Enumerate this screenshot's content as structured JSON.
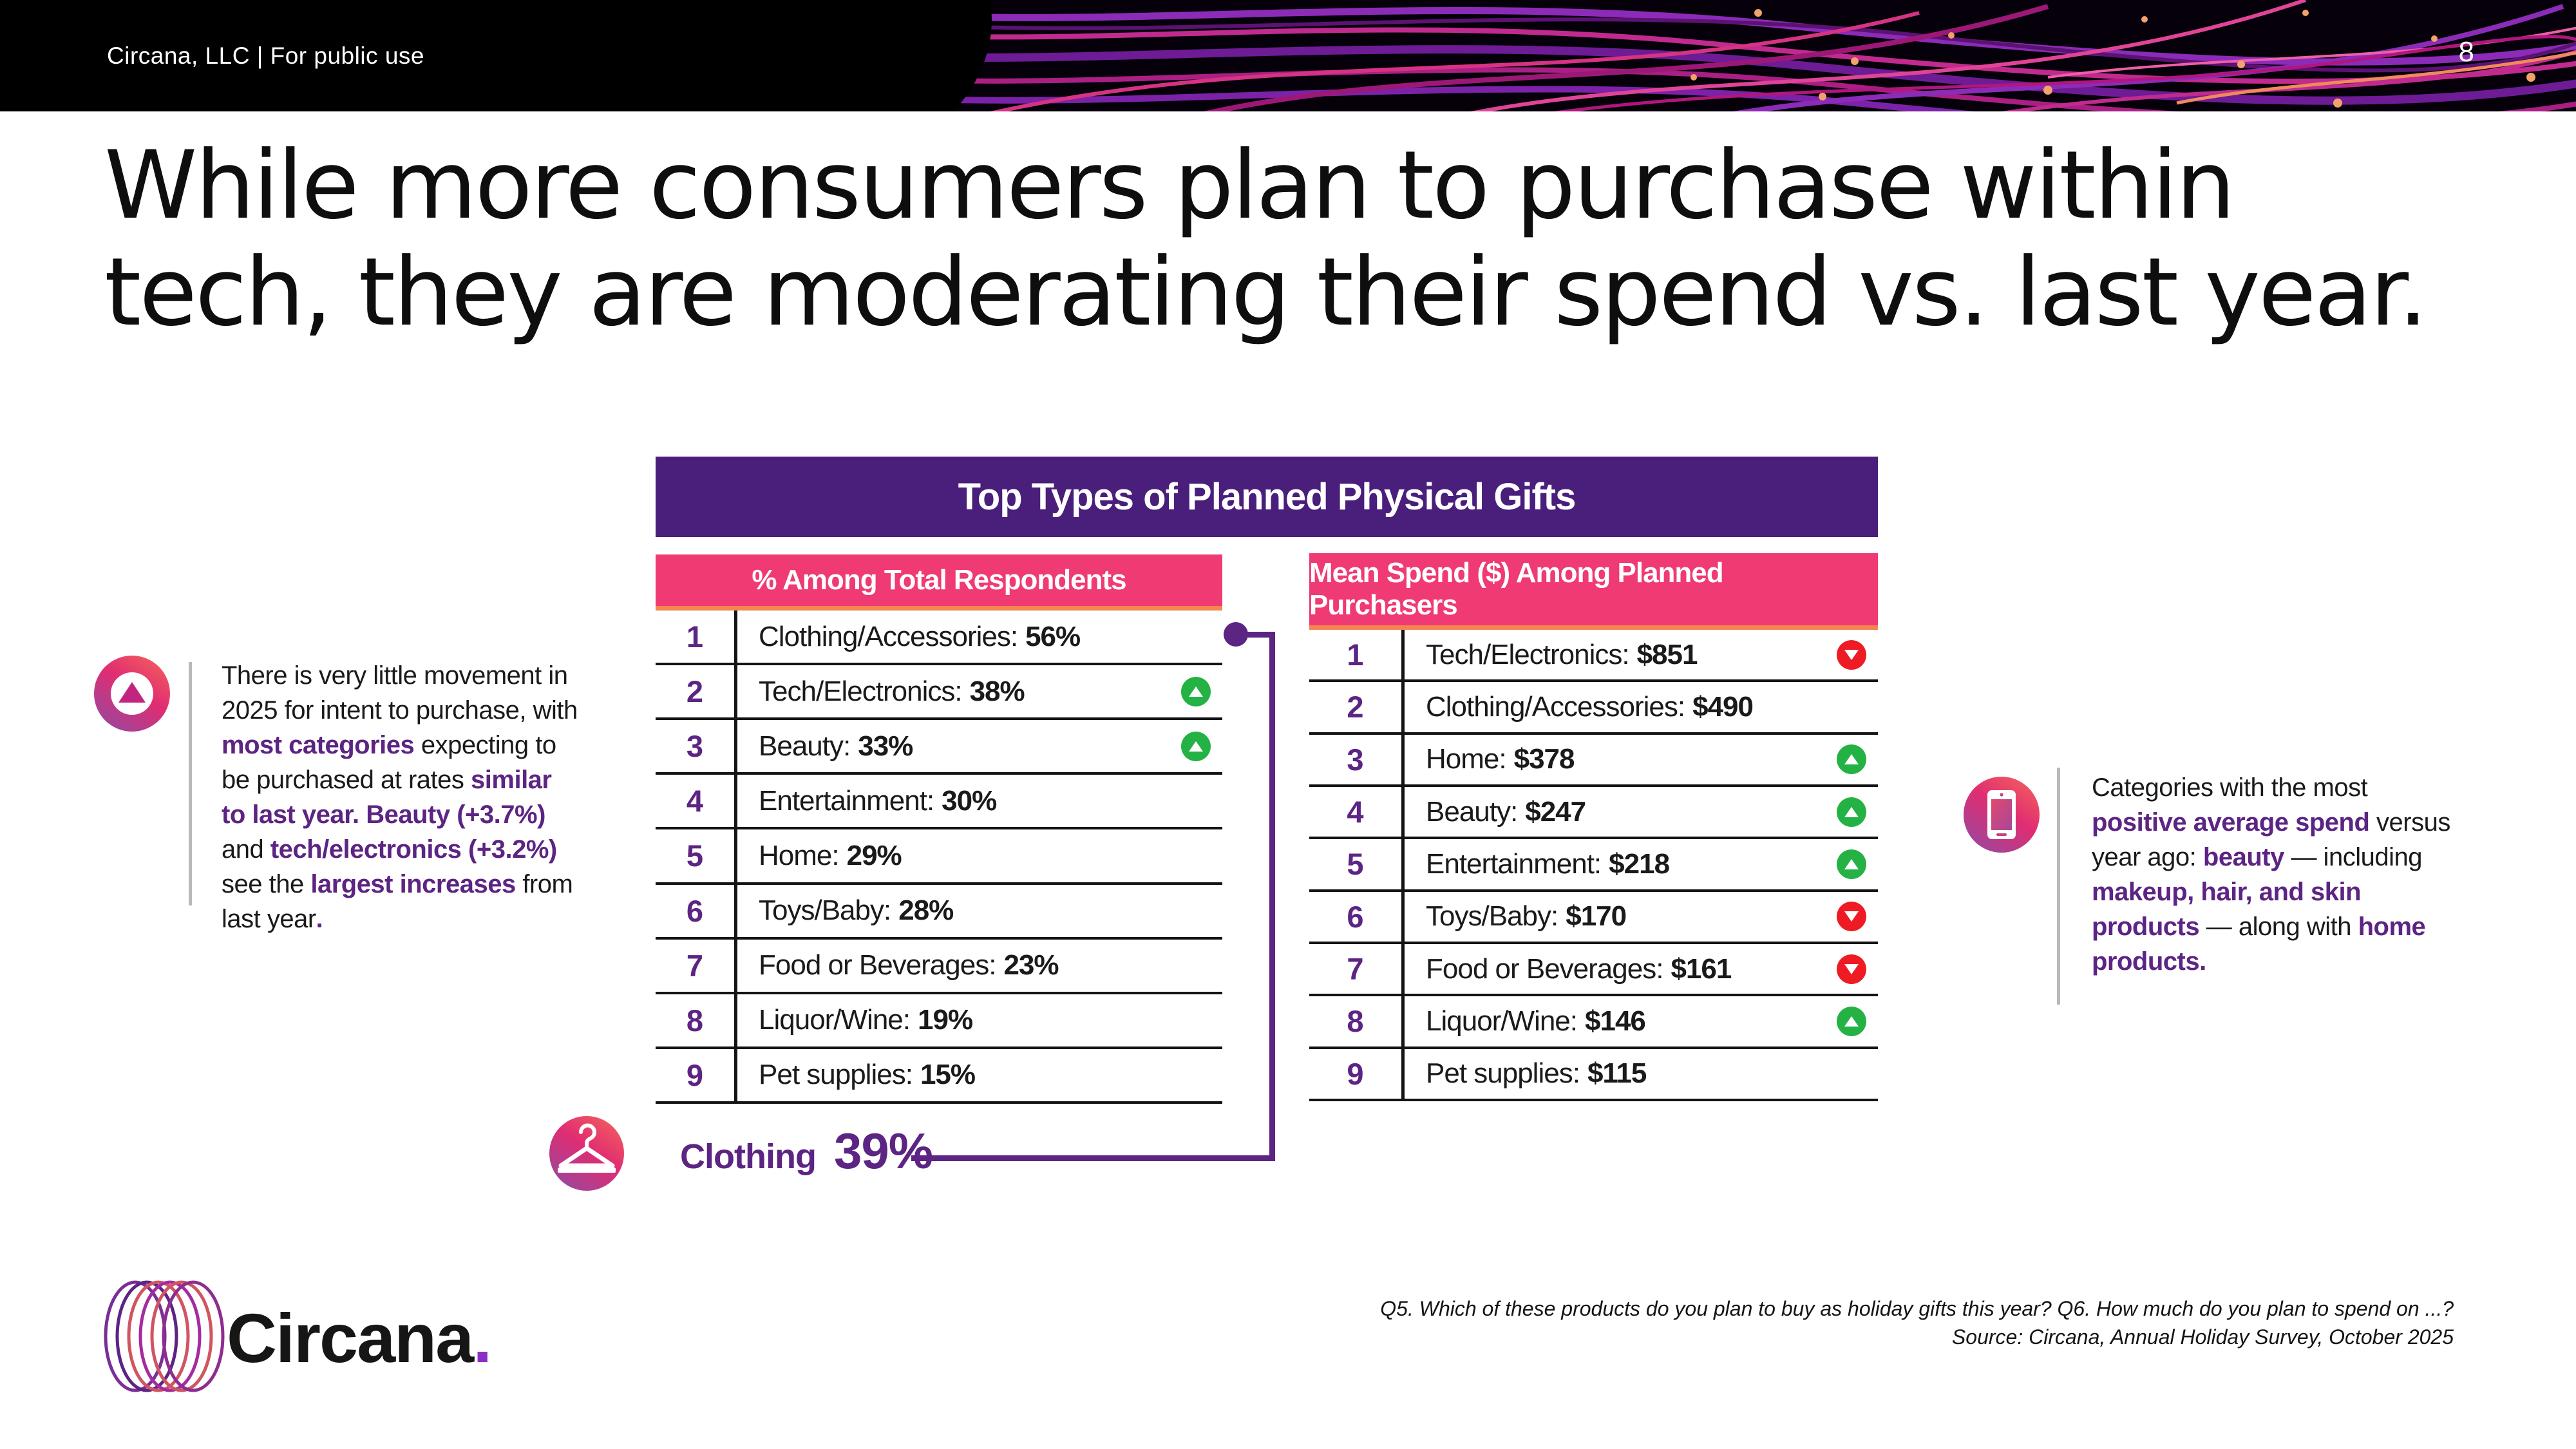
{
  "banner": {
    "left_text": "Circana, LLC |  For public use",
    "page_number": "8"
  },
  "title": {
    "line1": "While more consumers plan to purchase within",
    "line2": "tech, they are moderating their spend vs. last year."
  },
  "table": {
    "title": "Top Types of Planned Physical Gifts",
    "left": {
      "header": "% Among Total Respondents",
      "rows": [
        {
          "rank": "1",
          "label": "Clothing/Accessories:",
          "value": "56%",
          "trend": "none"
        },
        {
          "rank": "2",
          "label": "Tech/Electronics:",
          "value": "38%",
          "trend": "up"
        },
        {
          "rank": "3",
          "label": "Beauty:",
          "value": "33%",
          "trend": "up"
        },
        {
          "rank": "4",
          "label": "Entertainment:",
          "value": "30%",
          "trend": "none"
        },
        {
          "rank": "5",
          "label": "Home:",
          "value": "29%",
          "trend": "none"
        },
        {
          "rank": "6",
          "label": "Toys/Baby:",
          "value": "28%",
          "trend": "none"
        },
        {
          "rank": "7",
          "label": "Food or Beverages:",
          "value": "23%",
          "trend": "none"
        },
        {
          "rank": "8",
          "label": "Liquor/Wine:",
          "value": "19%",
          "trend": "none"
        },
        {
          "rank": "9",
          "label": "Pet supplies:",
          "value": "15%",
          "trend": "none"
        }
      ]
    },
    "right": {
      "header": "Mean Spend ($) Among Planned Purchasers",
      "rows": [
        {
          "rank": "1",
          "label": "Tech/Electronics:",
          "value": "$851",
          "trend": "down"
        },
        {
          "rank": "2",
          "label": "Clothing/Accessories:",
          "value": "$490",
          "trend": "none"
        },
        {
          "rank": "3",
          "label": "Home:",
          "value": "$378",
          "trend": "up"
        },
        {
          "rank": "4",
          "label": "Beauty:",
          "value": "$247",
          "trend": "up"
        },
        {
          "rank": "5",
          "label": "Entertainment:",
          "value": "$218",
          "trend": "up"
        },
        {
          "rank": "6",
          "label": "Toys/Baby:",
          "value": "$170",
          "trend": "down"
        },
        {
          "rank": "7",
          "label": "Food or Beverages:",
          "value": "$161",
          "trend": "down"
        },
        {
          "rank": "8",
          "label": "Liquor/Wine:",
          "value": "$146",
          "trend": "up"
        },
        {
          "rank": "9",
          "label": "Pet supplies:",
          "value": "$115",
          "trend": "none"
        }
      ]
    }
  },
  "left_note": {
    "segments": [
      {
        "t": "There is very little movement in 2025 for intent to purchase, with ",
        "em": false
      },
      {
        "t": "most categories",
        "em": true
      },
      {
        "t": " expecting to be purchased at rates ",
        "em": false
      },
      {
        "t": "similar to last year. Beauty (+3.7%)",
        "em": true
      },
      {
        "t": " and ",
        "em": false
      },
      {
        "t": "tech/electronics (+3.2%)",
        "em": true
      },
      {
        "t": " see the ",
        "em": false
      },
      {
        "t": "largest increases",
        "em": true
      },
      {
        "t": " from last year",
        "em": false
      },
      {
        "t": ".",
        "em": true
      }
    ]
  },
  "right_note": {
    "segments": [
      {
        "t": "Categories with the most ",
        "em": false
      },
      {
        "t": "positive average spend",
        "em": true
      },
      {
        "t": " versus year ago: ",
        "em": false
      },
      {
        "t": "beauty",
        "em": true
      },
      {
        "t": " — including ",
        "em": false
      },
      {
        "t": "makeup, hair, and skin products",
        "em": true
      },
      {
        "t": " — along with ",
        "em": false
      },
      {
        "t": "home products.",
        "em": true
      }
    ]
  },
  "callout": {
    "label": "Clothing",
    "value": "39%"
  },
  "footer": {
    "line1": "Q5. Which of these products do you plan to buy as holiday gifts this year? Q6. How much do you plan to spend on ...?",
    "line2": "Source: Circana, Annual Holiday Survey, October 2025"
  },
  "logo": {
    "text": "Circana",
    "dot": "."
  },
  "colors": {
    "header_purple": "#4A1E7B",
    "header_pink": "#EF3A74",
    "header_underline_orange": "#F5854F",
    "accent_purple": "#5C2483",
    "trend_up_green": "#25B244",
    "trend_down_red": "#EE1B24"
  },
  "chart_data": [
    {
      "type": "table",
      "title": "% Among Total Respondents",
      "columns": [
        "rank",
        "category",
        "percent",
        "trend_vs_last_year"
      ],
      "rows": [
        [
          1,
          "Clothing/Accessories",
          "56%",
          ""
        ],
        [
          2,
          "Tech/Electronics",
          "38%",
          "up"
        ],
        [
          3,
          "Beauty",
          "33%",
          "up"
        ],
        [
          4,
          "Entertainment",
          "30%",
          ""
        ],
        [
          5,
          "Home",
          "29%",
          ""
        ],
        [
          6,
          "Toys/Baby",
          "28%",
          ""
        ],
        [
          7,
          "Food or Beverages",
          "23%",
          ""
        ],
        [
          8,
          "Liquor/Wine",
          "19%",
          ""
        ],
        [
          9,
          "Pet supplies",
          "15%",
          ""
        ]
      ]
    },
    {
      "type": "table",
      "title": "Mean Spend ($) Among Planned Purchasers",
      "columns": [
        "rank",
        "category",
        "mean_spend",
        "trend_vs_last_year"
      ],
      "rows": [
        [
          1,
          "Tech/Electronics",
          "$851",
          "down"
        ],
        [
          2,
          "Clothing/Accessories",
          "$490",
          ""
        ],
        [
          3,
          "Home",
          "$378",
          "up"
        ],
        [
          4,
          "Beauty",
          "$247",
          "up"
        ],
        [
          5,
          "Entertainment",
          "$218",
          "up"
        ],
        [
          6,
          "Toys/Baby",
          "$170",
          "down"
        ],
        [
          7,
          "Food or Beverages",
          "$161",
          "down"
        ],
        [
          8,
          "Liquor/Wine",
          "$146",
          "up"
        ],
        [
          9,
          "Pet supplies",
          "$115",
          ""
        ]
      ],
      "annotations": [
        "Clothing 39% (callout)",
        "Beauty +3.7%",
        "Tech/electronics +3.2%"
      ]
    }
  ]
}
